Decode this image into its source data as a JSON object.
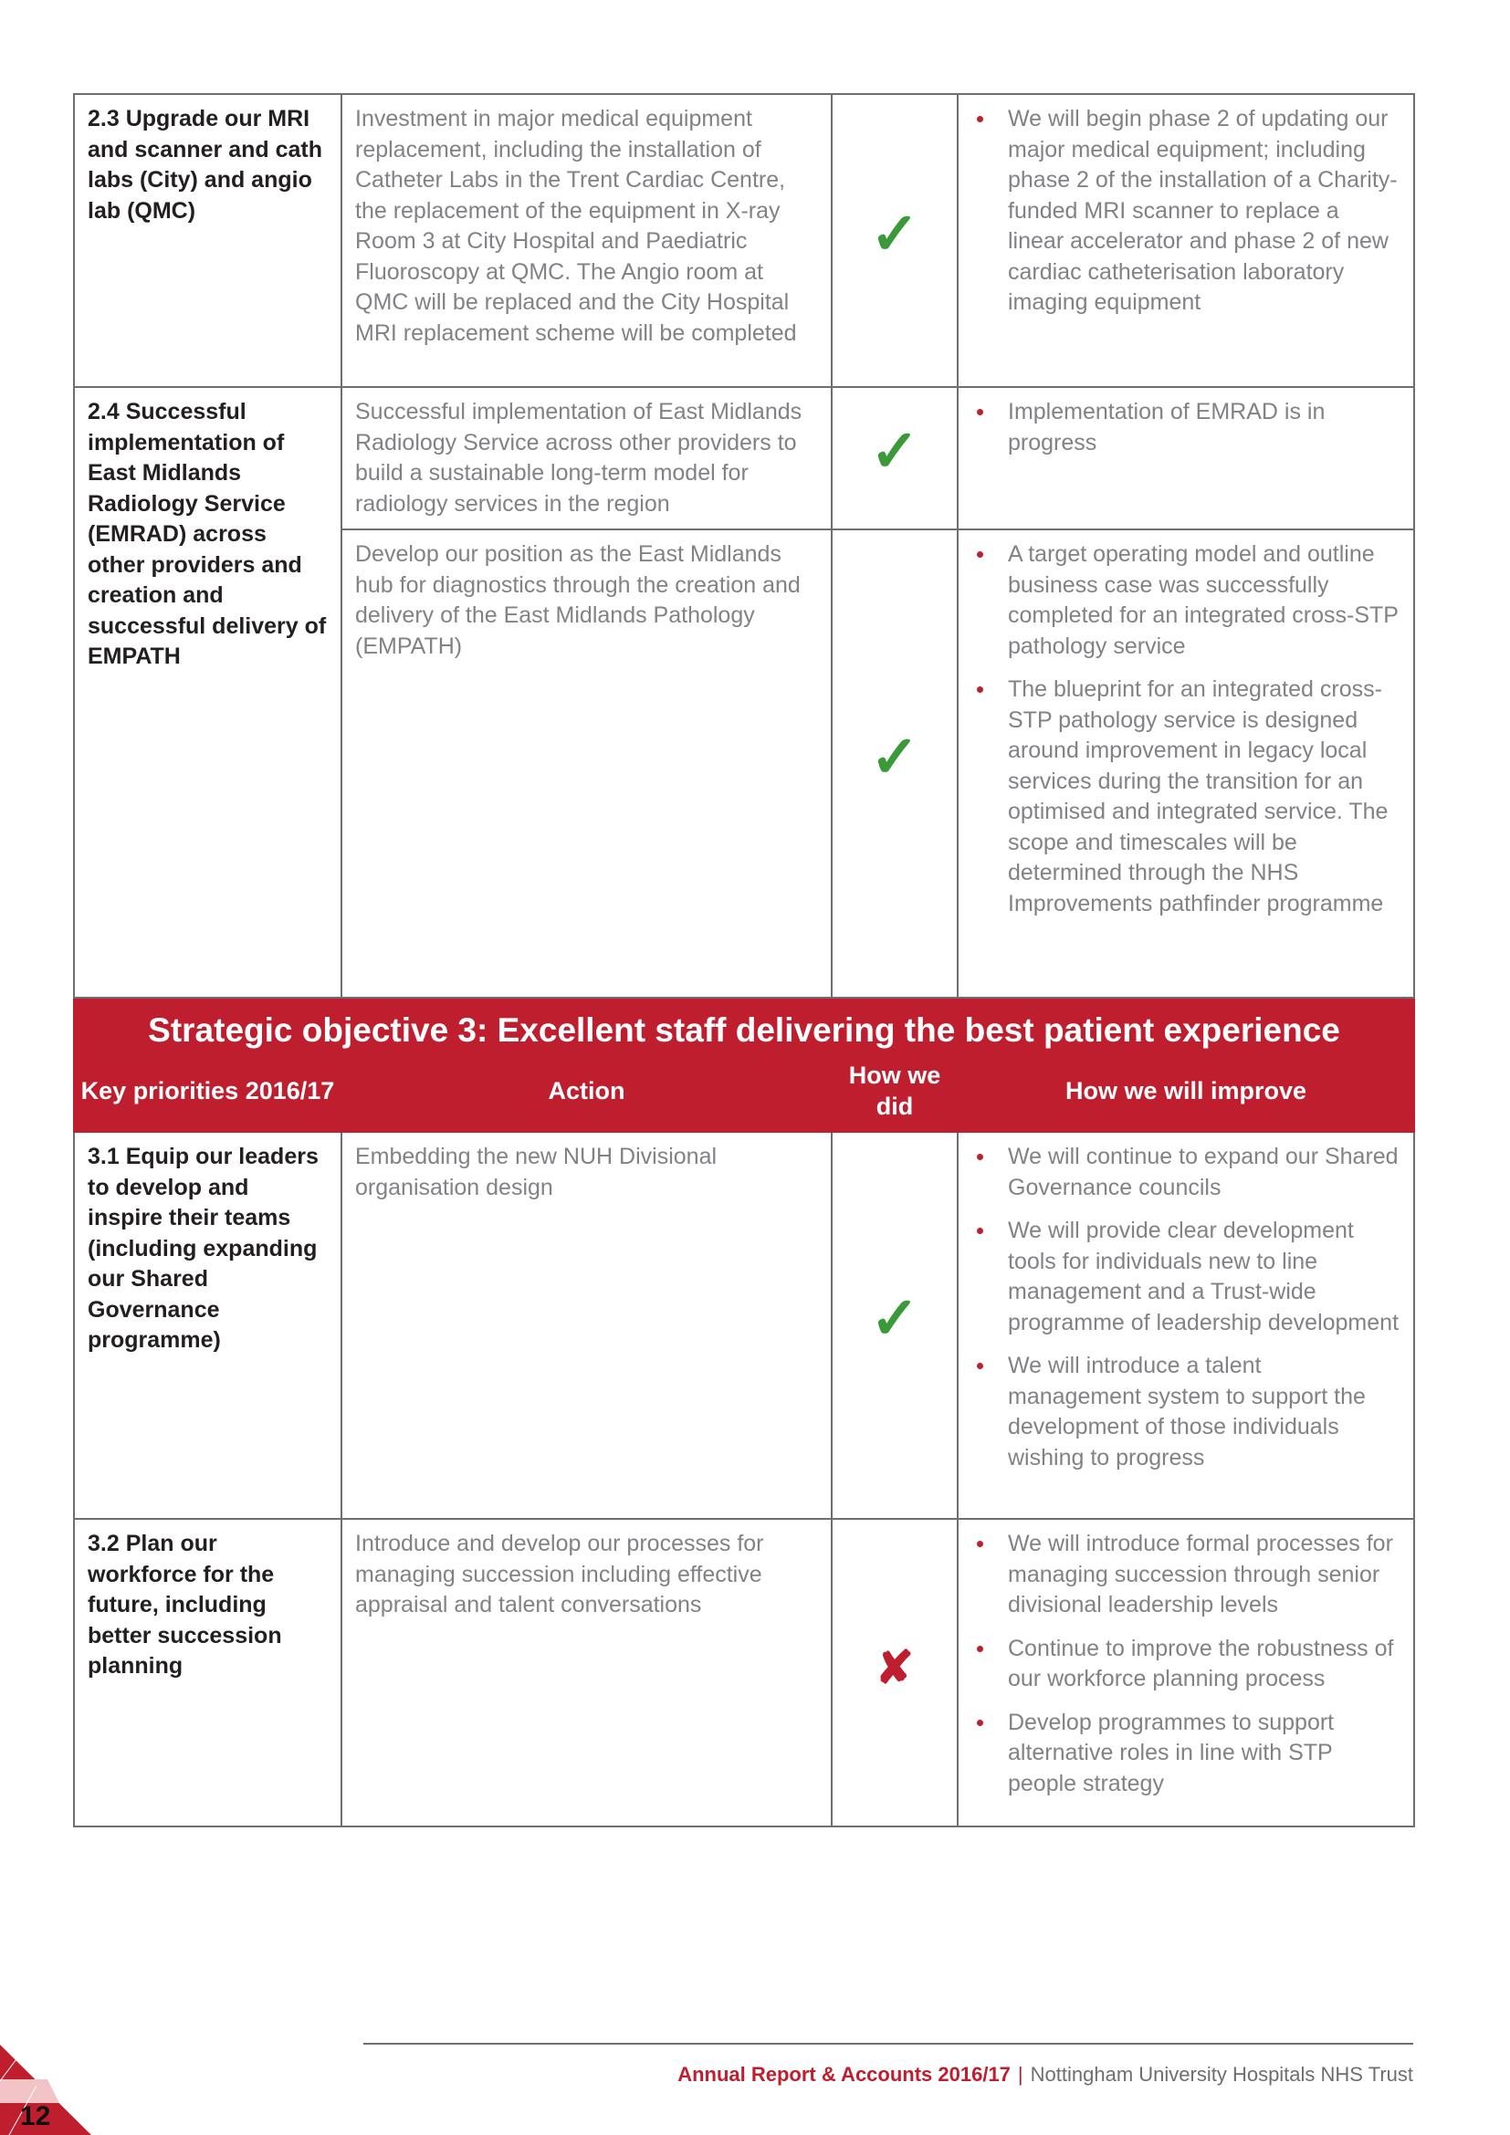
{
  "rows_top": [
    {
      "priority": "2.3 Upgrade our MRI and scanner and cath labs (City) and angio lab (QMC)",
      "action": "Investment in major medical equipment replacement, including the installation of Catheter Labs in the Trent Cardiac Centre, the replacement of the equipment in X-ray Room 3 at City Hospital and Paediatric Fluoroscopy at QMC. The Angio room at QMC will be replaced and the City Hospital MRI replacement scheme will be completed",
      "status": "check",
      "improve": [
        "We will begin phase 2 of updating our major medical equipment; including phase 2 of the installation of a Charity-funded MRI scanner to replace a linear accelerator and phase 2 of new cardiac catheterisation laboratory imaging equipment"
      ]
    },
    {
      "priority": "2.4 Successful implementation of East Midlands Radiology Service (EMRAD) across other providers and creation and successful delivery of EMPATH",
      "action": "Successful implementation of East Midlands Radiology Service across other providers to build a sustainable long-term model for radiology services in the region",
      "status": "check",
      "improve": [
        "Implementation of EMRAD is in progress"
      ]
    },
    {
      "action": "Develop our position as the East Midlands hub for diagnostics through the creation and delivery of the East Midlands Pathology (EMPATH)",
      "status": "check",
      "improve": [
        "A target operating model and outline business case was successfully completed for an integrated cross-STP pathology service",
        "The blueprint for an integrated cross-STP pathology service is designed around improvement in legacy local services during the transition for an optimised and integrated service. The scope and timescales will be determined through the NHS Improvements pathfinder programme"
      ]
    }
  ],
  "objective": {
    "title": "Strategic objective 3: Excellent staff delivering the best patient experience",
    "headers": [
      "Key priorities 2016/17",
      "Action",
      "How we did",
      "How we will improve"
    ]
  },
  "rows_bottom": [
    {
      "priority": "3.1 Equip our leaders to develop and inspire their teams (including expanding our Shared Governance programme)",
      "action": "Embedding the new NUH Divisional organisation design",
      "status": "check",
      "improve": [
        "We will continue to expand our Shared Governance councils",
        "We will provide clear development tools for individuals new to line management and a Trust-wide programme of leadership development",
        "We will introduce a talent management system to support the development of those individuals wishing to progress"
      ]
    },
    {
      "priority": "3.2 Plan our workforce for the future, including better succession planning",
      "action": "Introduce and develop our processes for managing succession including effective appraisal and talent conversations",
      "status": "cross",
      "improve": [
        "We will introduce formal processes for managing succession through senior divisional leadership levels",
        "Continue to improve the robustness of our workforce planning process",
        "Develop programmes to support alternative roles in line with STP people strategy"
      ]
    }
  ],
  "symbols": {
    "check": "✓",
    "cross": "✘"
  },
  "footer": {
    "report": "Annual Report & Accounts 2016/17",
    "separator": "|",
    "org": "Nottingham University Hospitals NHS Trust",
    "page": "12"
  },
  "colors": {
    "accent": "#be1e2d",
    "check": "#3a9a3a"
  }
}
